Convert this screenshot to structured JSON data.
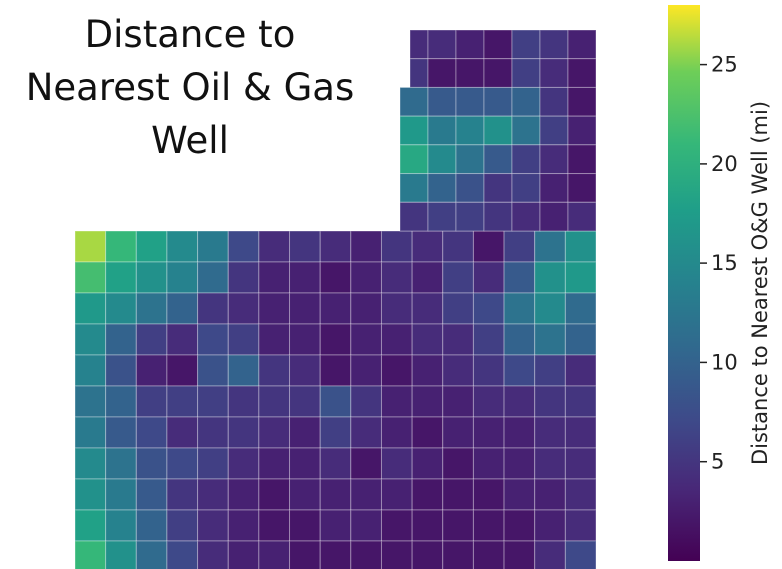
{
  "chart_data": {
    "type": "heatmap",
    "title_lines": [
      "Distance to",
      "Nearest Oil & Gas",
      "Well"
    ],
    "colorbar": {
      "label": "Distance to Nearest O&G Well (mi)",
      "ticks": [
        5,
        10,
        15,
        20,
        25
      ],
      "range": [
        0,
        28
      ],
      "colormap": "viridis"
    },
    "grid": {
      "rows": 16,
      "cols": 19,
      "values": [
        [
          null,
          null,
          null,
          null,
          null,
          null,
          null,
          null,
          null,
          null,
          null,
          null,
          null,
          null,
          null,
          null,
          null,
          null,
          null
        ],
        [
          null,
          null,
          null,
          null,
          null,
          null,
          null,
          null,
          null,
          null,
          null,
          null,
          null,
          null,
          null,
          null,
          null,
          null,
          null
        ],
        [
          null,
          null,
          null,
          null,
          null,
          null,
          null,
          null,
          null,
          null,
          null,
          null,
          null,
          null,
          null,
          null,
          null,
          null,
          null
        ],
        [
          null,
          null,
          null,
          null,
          null,
          null,
          null,
          null,
          null,
          null,
          null,
          null,
          null,
          null,
          null,
          null,
          null,
          null,
          null
        ],
        [
          null,
          null,
          null,
          null,
          null,
          null,
          null,
          null,
          null,
          null,
          null,
          null,
          null,
          null,
          null,
          null,
          null,
          null,
          null
        ],
        [
          26,
          21,
          18,
          15,
          13,
          7,
          4,
          5,
          4,
          3,
          5,
          4,
          5,
          2,
          6,
          12,
          16,
          null,
          null
        ],
        [
          22,
          18,
          16,
          14,
          11,
          5,
          3,
          3,
          2,
          3,
          4,
          3,
          6,
          4,
          9,
          16,
          17,
          null,
          null
        ],
        [
          17,
          15,
          12,
          10,
          5,
          4,
          3,
          3,
          3,
          3,
          4,
          4,
          6,
          7,
          12,
          15,
          11,
          null,
          null
        ],
        [
          15,
          10,
          6,
          4,
          7,
          6,
          3,
          3,
          2,
          3,
          3,
          4,
          4,
          6,
          10,
          12,
          10,
          null,
          null
        ],
        [
          14,
          8,
          3,
          2,
          8,
          10,
          5,
          4,
          2,
          3,
          2,
          3,
          4,
          5,
          7,
          6,
          4,
          null,
          null
        ],
        [
          12,
          10,
          6,
          6,
          6,
          5,
          5,
          5,
          8,
          5,
          3,
          3,
          3,
          4,
          4,
          5,
          5,
          null,
          null
        ],
        [
          13,
          9,
          7,
          4,
          5,
          5,
          4,
          3,
          6,
          4,
          3,
          2,
          3,
          3,
          3,
          4,
          4,
          null,
          null
        ],
        [
          15,
          12,
          8,
          7,
          6,
          4,
          3,
          3,
          4,
          2,
          4,
          3,
          2,
          3,
          3,
          4,
          4,
          null,
          null
        ],
        [
          16,
          13,
          9,
          5,
          4,
          3,
          2,
          3,
          3,
          3,
          3,
          2,
          2,
          2,
          3,
          3,
          4,
          null,
          null
        ],
        [
          18,
          14,
          10,
          6,
          4,
          3,
          2,
          2,
          3,
          3,
          2,
          2,
          2,
          2,
          2,
          3,
          4,
          null,
          null
        ],
        [
          21,
          16,
          11,
          7,
          4,
          3,
          3,
          2,
          2,
          2,
          2,
          2,
          2,
          2,
          2,
          4,
          7,
          null,
          null
        ]
      ]
    },
    "notch": {
      "rows": [
        [
          4,
          4,
          3,
          2,
          6,
          5,
          3
        ],
        [
          5,
          2,
          2,
          2,
          6,
          4,
          2
        ],
        [
          11,
          9,
          9,
          9,
          10,
          5,
          2
        ],
        [
          17,
          13,
          14,
          16,
          12,
          6,
          3
        ],
        [
          19,
          15,
          12,
          9,
          6,
          4,
          2
        ],
        [
          13,
          10,
          8,
          5,
          6,
          3,
          2
        ],
        [
          5,
          6,
          6,
          5,
          4,
          3,
          4
        ]
      ]
    }
  }
}
